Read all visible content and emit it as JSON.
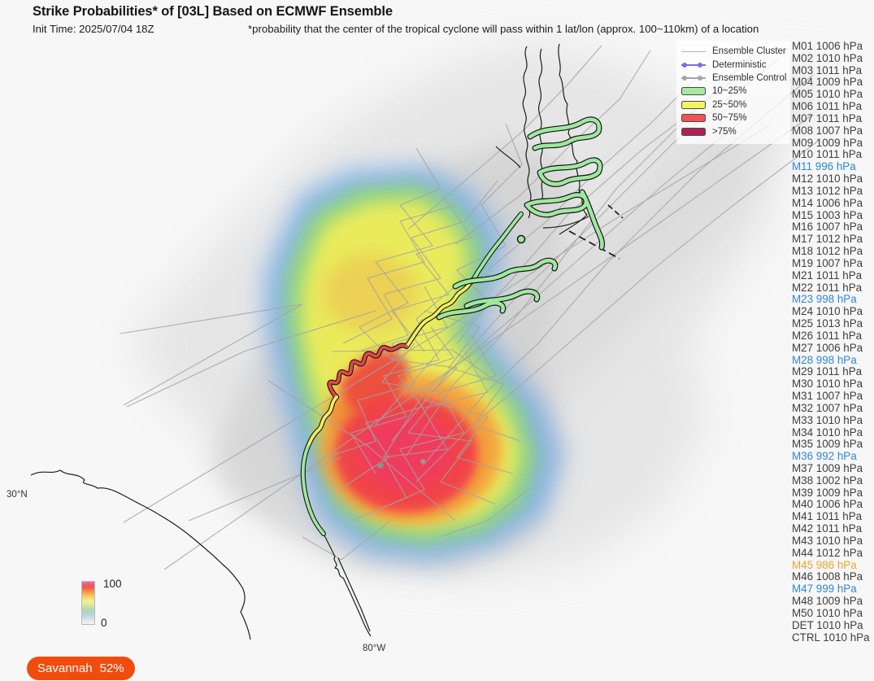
{
  "header": {
    "title": "Strike Probabilities* of [03L] Based on ECMWF Ensemble",
    "init_time": "Init Time: 2025/07/04 18Z",
    "footnote": "*probability that the center of the tropical cyclone will pass within 1 lat/lon (approx. 100~110km) of a location"
  },
  "legend": {
    "lines": [
      {
        "label": "Ensemble Cluster",
        "color": "#b3b3b3",
        "dots": false
      },
      {
        "label": "Deterministic",
        "color": "#7b6fe0",
        "dots": true
      },
      {
        "label": "Ensemble Control",
        "color": "#a6a6a6",
        "dots": true
      }
    ],
    "swatches": [
      {
        "label": "10~25%",
        "color": "#a7e8a0"
      },
      {
        "label": "25~50%",
        "color": "#f4f360"
      },
      {
        "label": "50~75%",
        "color": "#f15353"
      },
      {
        "label": ">75%",
        "color": "#ac2156"
      }
    ]
  },
  "members": [
    {
      "label": "M01 1006 hPa",
      "highlight": "none"
    },
    {
      "label": "M02 1010 hPa",
      "highlight": "none"
    },
    {
      "label": "M03 1011 hPa",
      "highlight": "none"
    },
    {
      "label": "M04 1009 hPa",
      "highlight": "none"
    },
    {
      "label": "M05 1010 hPa",
      "highlight": "none"
    },
    {
      "label": "M06 1011 hPa",
      "highlight": "none"
    },
    {
      "label": "M07 1011 hPa",
      "highlight": "none"
    },
    {
      "label": "M08 1007 hPa",
      "highlight": "none"
    },
    {
      "label": "M09 1009 hPa",
      "highlight": "none"
    },
    {
      "label": "M10 1011 hPa",
      "highlight": "none"
    },
    {
      "label": "M11 996 hPa",
      "highlight": "blue"
    },
    {
      "label": "M12 1010 hPa",
      "highlight": "none"
    },
    {
      "label": "M13 1012 hPa",
      "highlight": "none"
    },
    {
      "label": "M14 1006 hPa",
      "highlight": "none"
    },
    {
      "label": "M15 1003 hPa",
      "highlight": "none"
    },
    {
      "label": "M16 1007 hPa",
      "highlight": "none"
    },
    {
      "label": "M17 1012 hPa",
      "highlight": "none"
    },
    {
      "label": "M18 1012 hPa",
      "highlight": "none"
    },
    {
      "label": "M19 1007 hPa",
      "highlight": "none"
    },
    {
      "label": "M21 1011 hPa",
      "highlight": "none"
    },
    {
      "label": "M22 1011 hPa",
      "highlight": "none"
    },
    {
      "label": "M23 998 hPa",
      "highlight": "blue"
    },
    {
      "label": "M24 1010 hPa",
      "highlight": "none"
    },
    {
      "label": "M25 1013 hPa",
      "highlight": "none"
    },
    {
      "label": "M26 1011 hPa",
      "highlight": "none"
    },
    {
      "label": "M27 1006 hPa",
      "highlight": "none"
    },
    {
      "label": "M28 998 hPa",
      "highlight": "blue"
    },
    {
      "label": "M29 1011 hPa",
      "highlight": "none"
    },
    {
      "label": "M30 1010 hPa",
      "highlight": "none"
    },
    {
      "label": "M31 1007 hPa",
      "highlight": "none"
    },
    {
      "label": "M32 1007 hPa",
      "highlight": "none"
    },
    {
      "label": "M33 1010 hPa",
      "highlight": "none"
    },
    {
      "label": "M34 1010 hPa",
      "highlight": "none"
    },
    {
      "label": "M35 1009 hPa",
      "highlight": "none"
    },
    {
      "label": "M36 992 hPa",
      "highlight": "blue"
    },
    {
      "label": "M37 1009 hPa",
      "highlight": "none"
    },
    {
      "label": "M38 1002 hPa",
      "highlight": "none"
    },
    {
      "label": "M39 1009 hPa",
      "highlight": "none"
    },
    {
      "label": "M40 1006 hPa",
      "highlight": "none"
    },
    {
      "label": "M41 1011 hPa",
      "highlight": "none"
    },
    {
      "label": "M42 1011 hPa",
      "highlight": "none"
    },
    {
      "label": "M43 1010 hPa",
      "highlight": "none"
    },
    {
      "label": "M44 1012 hPa",
      "highlight": "none"
    },
    {
      "label": "M45 986 hPa",
      "highlight": "orange"
    },
    {
      "label": "M46 1008 hPa",
      "highlight": "none"
    },
    {
      "label": "M47 999 hPa",
      "highlight": "blue"
    },
    {
      "label": "M48 1009 hPa",
      "highlight": "none"
    },
    {
      "label": "M50 1010 hPa",
      "highlight": "none"
    },
    {
      "label": "DET 1010 hPa",
      "highlight": "none"
    },
    {
      "label": "CTRL 1010 hPa",
      "highlight": "none"
    }
  ],
  "colorbar": {
    "max": "100",
    "min": "0"
  },
  "map_labels": {
    "lat": "30°N",
    "lon": "80°W"
  },
  "badge": {
    "label": "Savannah",
    "value": "52%",
    "color": "#f24b0e"
  },
  "heatmap_colors": {
    "low_gray": "#cfcfcf",
    "blue": "#6fa8e6",
    "green": "#8fd877",
    "yellow": "#f2ee58",
    "orange": "#f59a3a",
    "red": "#f04048",
    "core": "#f13a60"
  }
}
